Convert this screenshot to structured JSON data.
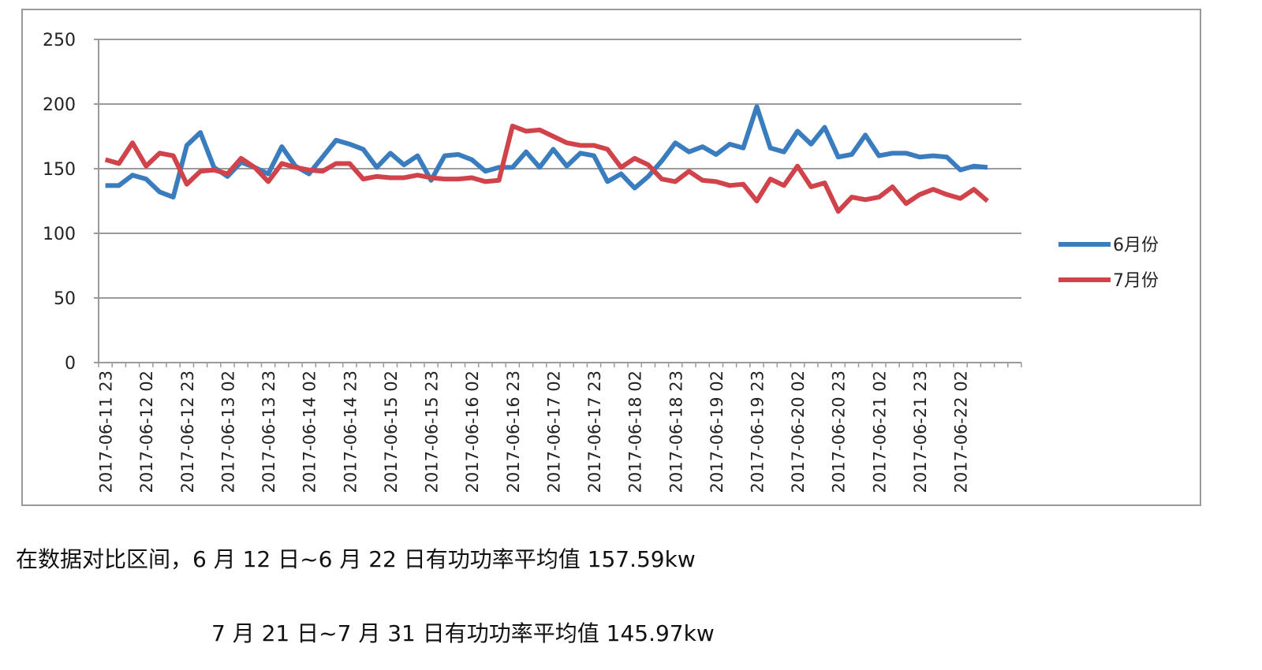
{
  "chart_data": {
    "type": "line",
    "categories": [
      "2017-06-11 23",
      null,
      null,
      "2017-06-12 02",
      null,
      null,
      "2017-06-12 23",
      null,
      null,
      "2017-06-13 02",
      null,
      null,
      "2017-06-13 23",
      null,
      null,
      "2017-06-14 02",
      null,
      null,
      "2017-06-14 23",
      null,
      null,
      "2017-06-15 02",
      null,
      null,
      "2017-06-15 23",
      null,
      null,
      "2017-06-16 02",
      null,
      null,
      "2017-06-16 23",
      null,
      null,
      "2017-06-17 02",
      null,
      null,
      "2017-06-17 23",
      null,
      null,
      "2017-06-18 02",
      null,
      null,
      "2017-06-18 23",
      null,
      null,
      "2017-06-19 02",
      null,
      null,
      "2017-06-19 23",
      null,
      null,
      "2017-06-20 02",
      null,
      null,
      "2017-06-20 23",
      null,
      null,
      "2017-06-21 02",
      null,
      null,
      "2017-06-21 23",
      null,
      null,
      "2017-06-22 02",
      null,
      null,
      null,
      null
    ],
    "series": [
      {
        "name": "6月份",
        "color": "#3a7dbf",
        "values": [
          137,
          137,
          145,
          142,
          132,
          128,
          168,
          178,
          151,
          144,
          155,
          151,
          146,
          167,
          152,
          146,
          159,
          172,
          169,
          165,
          151,
          162,
          153,
          160,
          141,
          160,
          161,
          157,
          148,
          151,
          151,
          163,
          151,
          165,
          152,
          162,
          160,
          140,
          146,
          135,
          144,
          156,
          170,
          163,
          167,
          161,
          169,
          166,
          198,
          166,
          163,
          179,
          169,
          182,
          159,
          161,
          176,
          160,
          162,
          162,
          159,
          160,
          159,
          149,
          152,
          151,
          null,
          null
        ]
      },
      {
        "name": "7月份",
        "color": "#d0434a",
        "values": [
          157,
          154,
          170,
          152,
          162,
          160,
          138,
          148,
          149,
          146,
          158,
          151,
          140,
          154,
          151,
          149,
          148,
          154,
          154,
          142,
          144,
          143,
          143,
          145,
          143,
          142,
          142,
          143,
          140,
          141,
          183,
          179,
          180,
          175,
          170,
          168,
          168,
          165,
          151,
          158,
          153,
          142,
          140,
          148,
          141,
          140,
          137,
          138,
          125,
          142,
          137,
          152,
          136,
          139,
          117,
          128,
          126,
          128,
          136,
          123,
          130,
          134,
          130,
          127,
          134,
          125,
          null,
          null
        ]
      }
    ],
    "ylim": [
      0,
      250
    ],
    "yticks": [
      0,
      50,
      100,
      150,
      200,
      250
    ],
    "grid": true,
    "legend": "right"
  },
  "paragraphs": [
    "在数据对比区间，6 月 12 日~6 月 22 日有功功率平均值 157.59kw",
    "7 月 21 日~7 月 31 日有功功率平均值 145.97kw"
  ]
}
